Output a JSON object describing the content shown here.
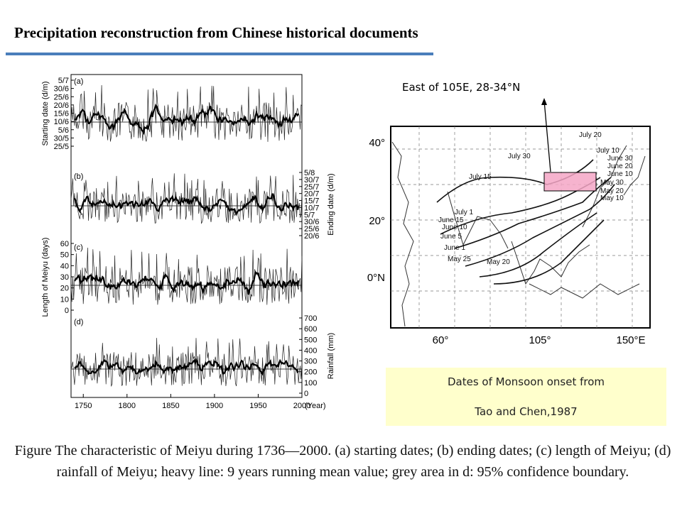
{
  "title": "Precipitation reconstruction from Chinese historical documents",
  "colors": {
    "title_rule": "#4a7ebb",
    "source_box": "#ffffcc",
    "region_box": "#f4a6c6"
  },
  "series_figure": {
    "x_ticks": [
      "1750",
      "1800",
      "1850",
      "1900",
      "1950",
      "2000"
    ],
    "x_unit": "(Year)",
    "panels": [
      {
        "label": "(a)",
        "axis_title": "Starting date (d/m)",
        "side": "left",
        "ticks": [
          "5/7",
          "30/6",
          "25/6",
          "20/6",
          "15/6",
          "10/6",
          "5/6",
          "30/5",
          "25/5"
        ]
      },
      {
        "label": "(b)",
        "axis_title": "Ending date (d/m)",
        "side": "right",
        "ticks": [
          "5/8",
          "30/7",
          "25/7",
          "20/7",
          "15/7",
          "10/7",
          "5/7",
          "30/6",
          "25/6",
          "20/6"
        ]
      },
      {
        "label": "(c)",
        "axis_title": "Length of Meiyu (days)",
        "side": "left",
        "ticks": [
          "60",
          "50",
          "40",
          "30",
          "20",
          "10",
          "0"
        ]
      },
      {
        "label": "(d)",
        "axis_title": "Rainfall (mm)",
        "side": "right",
        "ticks": [
          "700",
          "600",
          "500",
          "400",
          "300",
          "200",
          "100",
          "0"
        ]
      }
    ]
  },
  "chart_data": [
    {
      "type": "line",
      "panel": "(a)",
      "xlabel": "(Year)",
      "ylabel": "Starting date (d/m)",
      "xlim": [
        1736,
        2000
      ],
      "ylim": [
        "25/5",
        "5/7"
      ],
      "mean_line": "15/6",
      "series": [
        {
          "values": []
        },
        {
          "name": "9 years running mean",
          "values": []
        }
      ]
    },
    {
      "type": "line",
      "panel": "(b)",
      "xlabel": "(Year)",
      "ylabel": "Ending date (d/m)",
      "xlim": [
        1736,
        2000
      ],
      "ylim": [
        "20/6",
        "5/8"
      ],
      "mean_line": "10/7",
      "series": [
        {
          "values": []
        },
        {
          "name": "9 years running mean",
          "values": []
        }
      ]
    },
    {
      "type": "line",
      "panel": "(c)",
      "xlabel": "(Year)",
      "ylabel": "Length of Meiyu (days)",
      "xlim": [
        1736,
        2000
      ],
      "ylim": [
        0,
        60
      ],
      "mean_line": 24,
      "series": [
        {
          "values": []
        },
        {
          "name": "9 years running mean",
          "values": []
        }
      ]
    },
    {
      "type": "line",
      "panel": "(d)",
      "xlabel": "(Year)",
      "ylabel": "Rainfall (mm)",
      "xlim": [
        1736,
        2000
      ],
      "ylim": [
        0,
        700
      ],
      "mean_line": 200,
      "series": [
        {
          "values": []
        },
        {
          "name": "9 years running mean",
          "values": []
        }
      ]
    }
  ],
  "map": {
    "lat_labels": [
      "40°",
      "20°",
      "0°N"
    ],
    "lon_labels": [
      "60°",
      "105°",
      "150°E"
    ],
    "isochrones": [
      "July 20",
      "July 30",
      "July 10",
      "June 30",
      "June 20",
      "June 10",
      "May 30",
      "May 20",
      "May 10",
      "July 15",
      "July 1",
      "June 15",
      "June 10",
      "June 5",
      "June 1",
      "May 25",
      "May 20"
    ]
  },
  "region_label": "East of 105E, 28-34°N",
  "source": {
    "line1": "Dates of Monsoon onset from",
    "line2": "Tao and Chen,1987"
  },
  "caption": "Figure The characteristic of Meiyu during 1736—2000. (a) starting dates; (b) ending dates; (c) length of Meiyu; (d) rainfall of Meiyu; heavy line: 9 years running mean value; grey area in d: 95% confidence boundary."
}
